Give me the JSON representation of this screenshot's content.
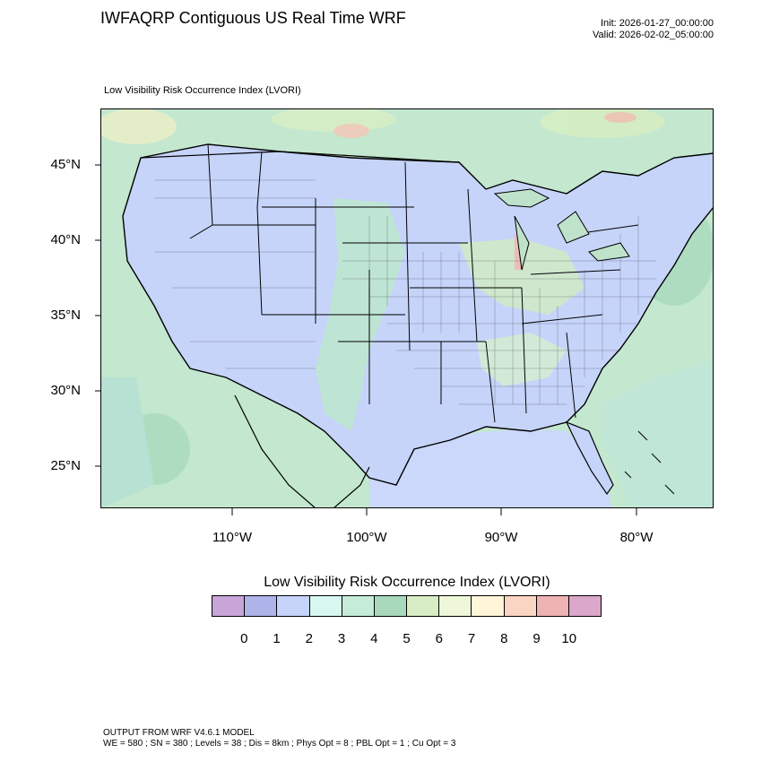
{
  "header": {
    "title": "IWFAQRP Contiguous US Real Time WRF",
    "init": "Init: 2026-01-27_00:00:00",
    "valid": "Valid: 2026-02-02_05:00:00"
  },
  "plot": {
    "title": "Low Visibility Risk Occurrence Index   (LVORI)",
    "lat_labels": [
      "45°N",
      "40°N",
      "35°N",
      "30°N",
      "25°N"
    ],
    "lon_labels": [
      "110°W",
      "100°W",
      "90°W",
      "80°W"
    ]
  },
  "legend": {
    "title": "Low Visibility Risk Occurrence Index  (LVORI)",
    "colors": [
      "#c8a5d9",
      "#aeb3ea",
      "#c6d4fa",
      "#d8f7f1",
      "#c5ecd9",
      "#a9d9bd",
      "#d8edc4",
      "#eef7d8",
      "#fff5d8",
      "#fbd5c4",
      "#efb3b3",
      "#dba7ca"
    ],
    "ticks": [
      "0",
      "1",
      "2",
      "3",
      "4",
      "5",
      "6",
      "7",
      "8",
      "9",
      "10"
    ]
  },
  "footer": {
    "line1": "OUTPUT FROM WRF V4.6.1 MODEL",
    "line2": "WE = 580 ; SN = 380 ; Levels = 38 ; Dis = 8km ; Phys Opt = 8 ; PBL Opt = 1 ; Cu Opt = 3"
  }
}
